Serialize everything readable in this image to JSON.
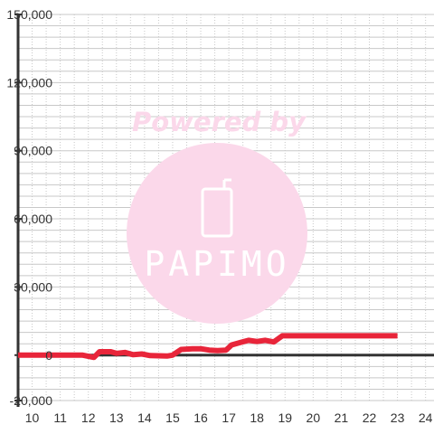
{
  "chart_data": {
    "type": "line",
    "title": "",
    "xlabel": "",
    "ylabel": "",
    "xlim": [
      9.5,
      24.3
    ],
    "ylim": [
      -20000,
      150000
    ],
    "x_ticks": [
      10,
      11,
      12,
      13,
      14,
      15,
      16,
      17,
      18,
      19,
      20,
      21,
      22,
      23,
      24
    ],
    "y_ticks": [
      -20000,
      0,
      30000,
      60000,
      90000,
      120000,
      150000
    ],
    "x_tick_labels": [
      "10",
      "11",
      "12",
      "13",
      "14",
      "15",
      "16",
      "17",
      "18",
      "19",
      "20",
      "21",
      "22",
      "23",
      "24"
    ],
    "y_tick_labels": [
      "-20,000",
      "0",
      "30,000",
      "60,000",
      "90,000",
      "120,000",
      "150,000"
    ],
    "grid": true,
    "series": [
      {
        "color": "#e8253a",
        "points": [
          [
            9.5,
            0
          ],
          [
            11.8,
            0
          ],
          [
            12.2,
            -1000
          ],
          [
            12.4,
            1500
          ],
          [
            12.8,
            1500
          ],
          [
            13.0,
            800
          ],
          [
            13.3,
            1200
          ],
          [
            13.6,
            200
          ],
          [
            13.9,
            500
          ],
          [
            14.2,
            -200
          ],
          [
            14.8,
            -400
          ],
          [
            15.0,
            0
          ],
          [
            15.3,
            2500
          ],
          [
            15.7,
            2800
          ],
          [
            16.0,
            2800
          ],
          [
            16.3,
            2200
          ],
          [
            16.6,
            2000
          ],
          [
            16.9,
            2200
          ],
          [
            17.1,
            4500
          ],
          [
            17.4,
            5500
          ],
          [
            17.7,
            6500
          ],
          [
            18.0,
            6000
          ],
          [
            18.3,
            6500
          ],
          [
            18.6,
            5800
          ],
          [
            18.9,
            8500
          ],
          [
            19.5,
            8500
          ],
          [
            20.5,
            8500
          ],
          [
            21.5,
            8500
          ],
          [
            22.5,
            8500
          ],
          [
            23.0,
            8500
          ]
        ]
      }
    ]
  },
  "watermark": {
    "title": "Powered by",
    "brand": "PAPIMO",
    "color": "#fbd8ea",
    "icon": "phone-icon"
  },
  "colors": {
    "axis": "#333333",
    "grid": "#c8c8c8",
    "background": "#ffffff"
  }
}
